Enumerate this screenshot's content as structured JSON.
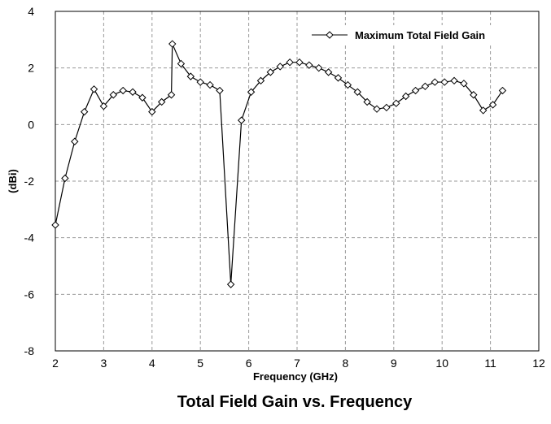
{
  "chart_data": {
    "type": "line",
    "title": "Total Field Gain vs. Frequency",
    "xlabel": "Frequency (GHz)",
    "ylabel": "(dBi)",
    "xlim": [
      2,
      12
    ],
    "ylim": [
      -8,
      4
    ],
    "xticks": [
      2,
      3,
      4,
      5,
      6,
      7,
      8,
      9,
      10,
      11,
      12
    ],
    "yticks": [
      4,
      2,
      0,
      -2,
      -4,
      -6,
      -8
    ],
    "grid": true,
    "legend_position": "top-right",
    "series": [
      {
        "name": "Maximum Total Field Gain",
        "marker": "diamond",
        "color": "#000000",
        "x": [
          2.0,
          2.2,
          2.4,
          2.6,
          2.8,
          3.0,
          3.2,
          3.4,
          3.6,
          3.8,
          4.0,
          4.2,
          4.4,
          4.42,
          4.6,
          4.8,
          5.0,
          5.2,
          5.4,
          5.63,
          5.85,
          6.05,
          6.25,
          6.45,
          6.65,
          6.85,
          7.05,
          7.25,
          7.45,
          7.65,
          7.85,
          8.05,
          8.25,
          8.45,
          8.65,
          8.85,
          9.05,
          9.25,
          9.45,
          9.65,
          9.85,
          10.05,
          10.25,
          10.45,
          10.65,
          10.85,
          11.05,
          11.25
        ],
        "values": [
          -3.55,
          -1.9,
          -0.6,
          0.45,
          1.25,
          0.65,
          1.05,
          1.2,
          1.15,
          0.95,
          0.45,
          0.8,
          1.05,
          2.85,
          2.15,
          1.7,
          1.5,
          1.4,
          1.2,
          -5.65,
          0.15,
          1.15,
          1.55,
          1.85,
          2.05,
          2.2,
          2.2,
          2.1,
          2.0,
          1.85,
          1.65,
          1.4,
          1.15,
          0.8,
          0.55,
          0.6,
          0.75,
          1.0,
          1.2,
          1.35,
          1.5,
          1.5,
          1.55,
          1.45,
          1.05,
          0.5,
          0.7,
          1.2
        ]
      }
    ]
  }
}
